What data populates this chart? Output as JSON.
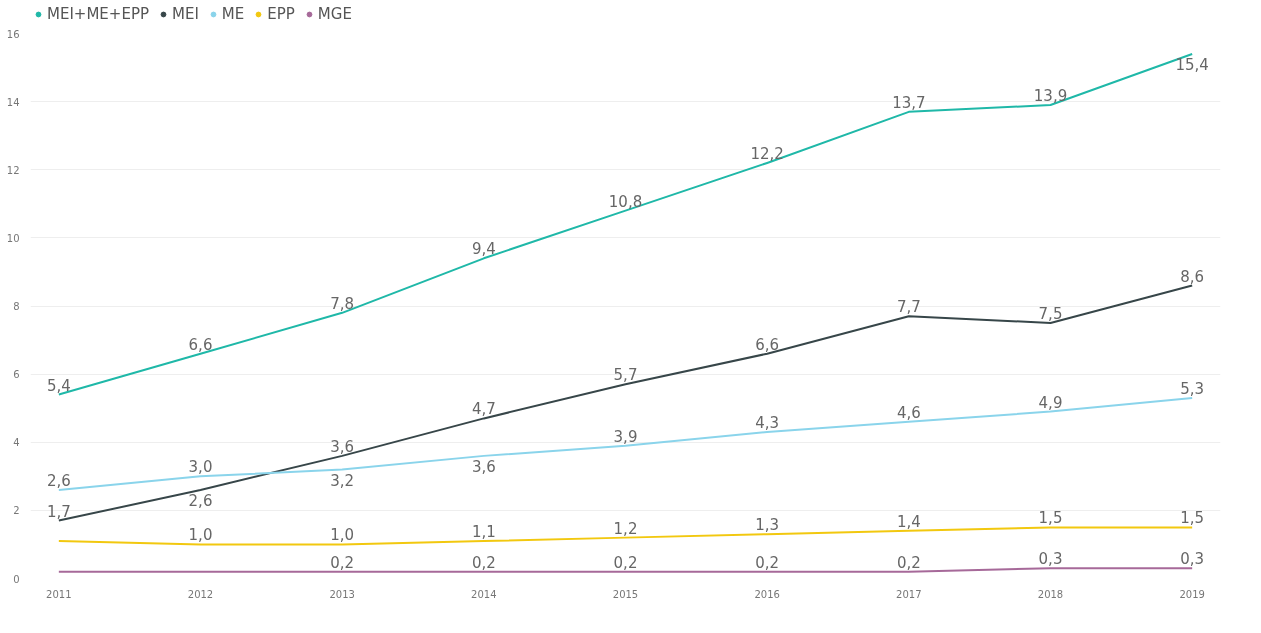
{
  "chart_data": {
    "type": "line",
    "categories": [
      "2011",
      "2012",
      "2013",
      "2014",
      "2015",
      "2016",
      "2017",
      "2018",
      "2019"
    ],
    "ylim": [
      0,
      16
    ],
    "yticks": [
      0,
      2,
      4,
      6,
      8,
      10,
      12,
      14,
      16
    ],
    "grid": "y",
    "legend": "top left",
    "series": [
      {
        "name": "MEI+ME+EPP",
        "color": "#1fb8a8",
        "values": [
          5.4,
          6.6,
          7.8,
          9.4,
          10.8,
          12.2,
          13.7,
          13.9,
          15.4
        ],
        "value_labels": [
          "5,4",
          "6,6",
          "7,8",
          "9,4",
          "10,8",
          "12,2",
          "13,7",
          "13,9",
          "15,4"
        ]
      },
      {
        "name": "MEI",
        "color": "#374649",
        "values": [
          1.7,
          2.6,
          3.6,
          4.7,
          5.7,
          6.6,
          7.7,
          7.5,
          8.6
        ],
        "value_labels": [
          "1,7",
          "2,6",
          "3,6",
          "4,7",
          "5,7",
          "6,6",
          "7,7",
          "7,5",
          "8,6"
        ]
      },
      {
        "name": "ME",
        "color": "#8ad4eb",
        "values": [
          2.6,
          3.0,
          3.2,
          3.6,
          3.9,
          4.3,
          4.6,
          4.9,
          5.3
        ],
        "value_labels": [
          "2,6",
          "3,0",
          "3,2",
          "3,6",
          "3,9",
          "4,3",
          "4,6",
          "4,9",
          "5,3"
        ]
      },
      {
        "name": "EPP",
        "color": "#f2c80f",
        "values": [
          1.1,
          1.0,
          1.0,
          1.1,
          1.2,
          1.3,
          1.4,
          1.5,
          1.5
        ],
        "value_labels": [
          null,
          "1,0",
          "1,0",
          "1,1",
          "1,2",
          "1,3",
          "1,4",
          "1,5",
          "1,5"
        ]
      },
      {
        "name": "MGE",
        "color": "#a66999",
        "values": [
          0.2,
          0.2,
          0.2,
          0.2,
          0.2,
          0.2,
          0.2,
          0.3,
          0.3
        ],
        "value_labels": [
          null,
          null,
          "0,2",
          "0,2",
          "0,2",
          "0,2",
          "0,2",
          "0,3",
          "0,3"
        ]
      }
    ]
  }
}
